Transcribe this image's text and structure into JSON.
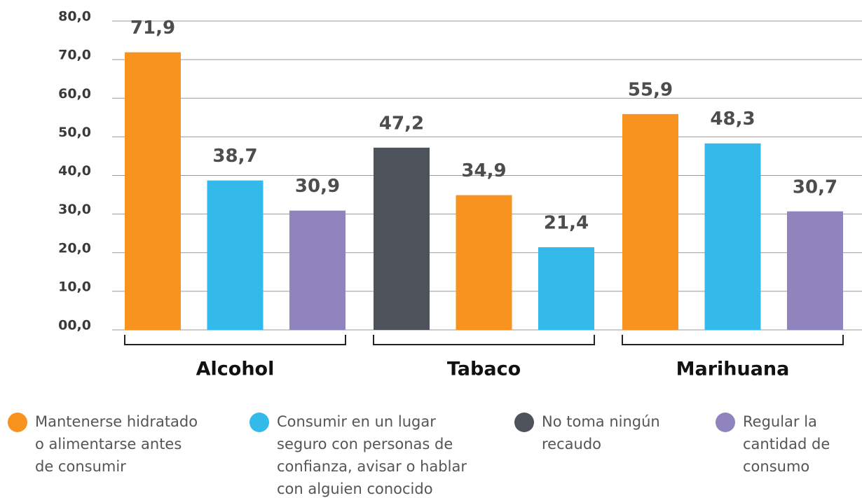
{
  "chart_data": {
    "type": "grouped-bar",
    "ylim": [
      0,
      80
    ],
    "yticks": [
      {
        "value": 0,
        "label": "00,0"
      },
      {
        "value": 10,
        "label": "10,0"
      },
      {
        "value": 20,
        "label": "20,0"
      },
      {
        "value": 30,
        "label": "30,0"
      },
      {
        "value": 40,
        "label": "40,0"
      },
      {
        "value": 50,
        "label": "50,0"
      },
      {
        "value": 60,
        "label": "60,0"
      },
      {
        "value": 70,
        "label": "70,0"
      },
      {
        "value": 80,
        "label": "80,0"
      }
    ],
    "grid": true,
    "groups": [
      {
        "label": "Alcohol",
        "bars": [
          {
            "value": 71.9,
            "value_label": "71,9",
            "color": "#f7931e"
          },
          {
            "value": 38.7,
            "value_label": "38,7",
            "color": "#33b9ea"
          },
          {
            "value": 30.9,
            "value_label": "30,9",
            "color": "#8f84be"
          }
        ]
      },
      {
        "label": "Tabaco",
        "bars": [
          {
            "value": 47.2,
            "value_label": "47,2",
            "color": "#4d525b"
          },
          {
            "value": 34.9,
            "value_label": "34,9",
            "color": "#f7931e"
          },
          {
            "value": 21.4,
            "value_label": "21,4",
            "color": "#33b9ea"
          }
        ]
      },
      {
        "label": "Marihuana",
        "bars": [
          {
            "value": 55.9,
            "value_label": "55,9",
            "color": "#f7931e"
          },
          {
            "value": 48.3,
            "value_label": "48,3",
            "color": "#33b9ea"
          },
          {
            "value": 30.7,
            "value_label": "30,7",
            "color": "#8f84be"
          }
        ]
      }
    ],
    "legend": [
      {
        "color": "#f7931e",
        "lines": [
          "Mantenerse hidratado",
          "o alimentarse antes",
          "de consumir"
        ]
      },
      {
        "color": "#33b9ea",
        "lines": [
          "Consumir en un lugar",
          "seguro con personas de",
          "confianza, avisar o hablar",
          "con alguien conocido"
        ]
      },
      {
        "color": "#4d525b",
        "lines": [
          "No toma ningún",
          "recaudo"
        ]
      },
      {
        "color": "#8f84be",
        "lines": [
          "Regular la",
          "cantidad de",
          "consumo"
        ]
      }
    ]
  }
}
